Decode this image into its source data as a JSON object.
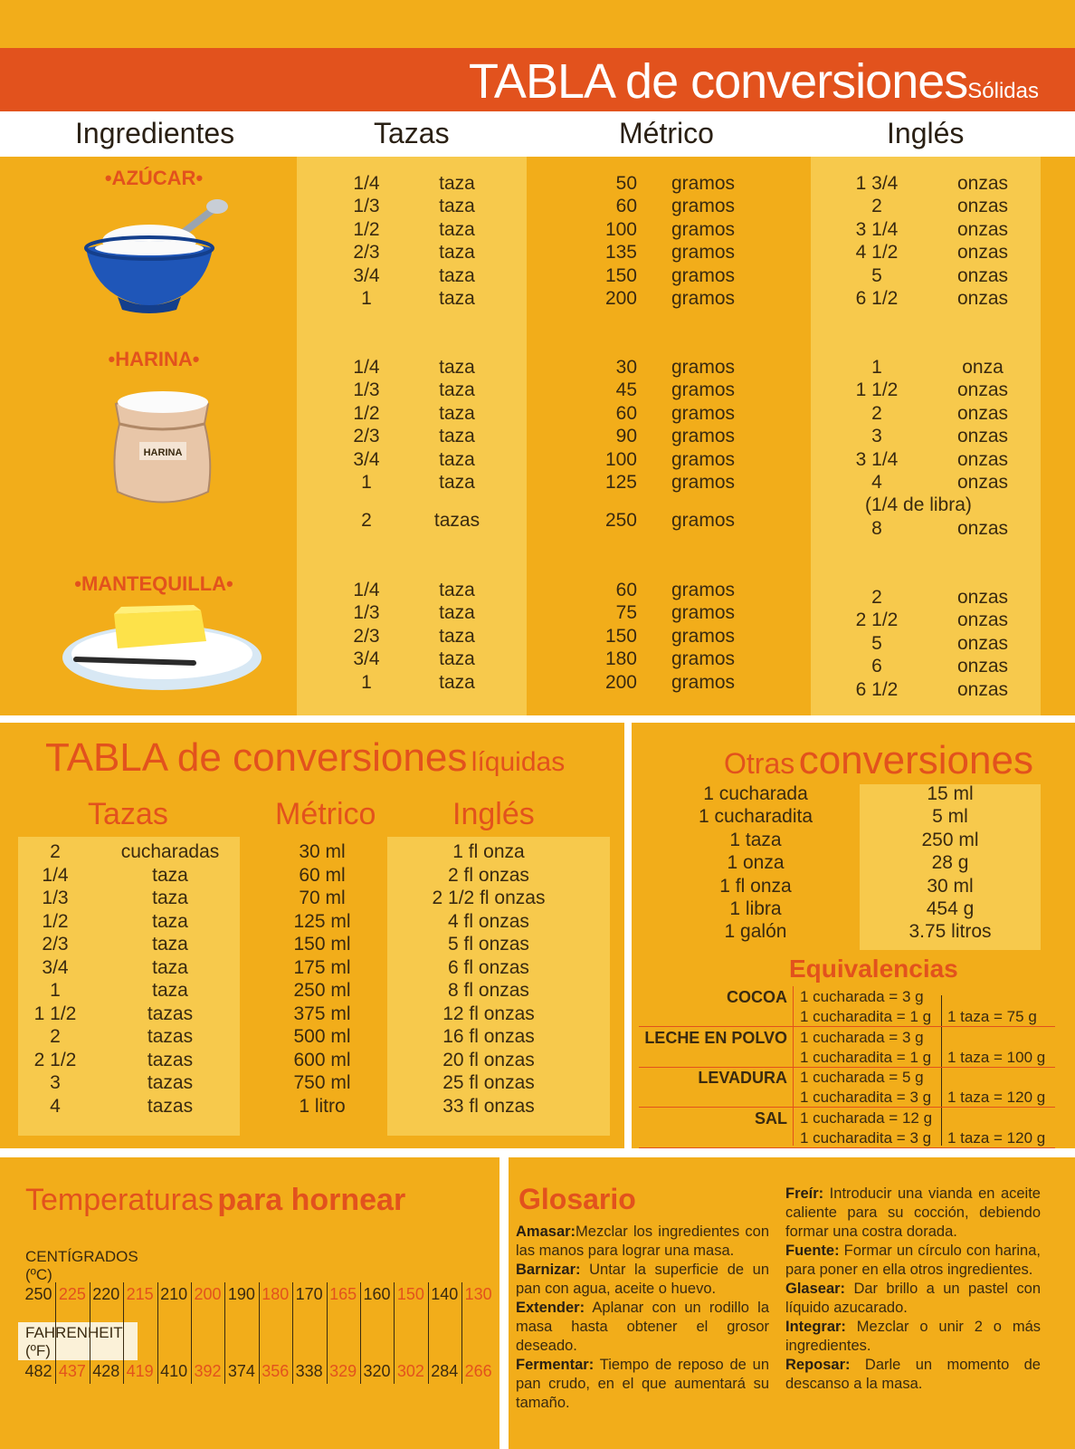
{
  "solids": {
    "title": "TABLA de conversiones",
    "subtitle": "Sólidas",
    "headers": [
      "Ingredientes",
      "Tazas",
      "Métrico",
      "Inglés"
    ],
    "ingredients": [
      {
        "name": "•AZÚCAR•",
        "icon": "sugar-bowl-icon",
        "rows": [
          [
            "1/4",
            "taza",
            "50",
            "gramos",
            "1 3/4",
            "onzas"
          ],
          [
            "1/3",
            "taza",
            "60",
            "gramos",
            "2",
            "onzas"
          ],
          [
            "1/2",
            "taza",
            "100",
            "gramos",
            "3 1/4",
            "onzas"
          ],
          [
            "2/3",
            "taza",
            "135",
            "gramos",
            "4 1/2",
            "onzas"
          ],
          [
            "3/4",
            "taza",
            "150",
            "gramos",
            "5",
            "onzas"
          ],
          [
            "1",
            "taza",
            "200",
            "gramos",
            "6 1/2",
            "onzas"
          ]
        ]
      },
      {
        "name": "•HARINA•",
        "icon": "flour-bag-icon",
        "bag_label": "HARINA",
        "rows": [
          [
            "1/4",
            "taza",
            "30",
            "gramos",
            "1",
            "onza"
          ],
          [
            "1/3",
            "taza",
            "45",
            "gramos",
            "1 1/2",
            "onzas"
          ],
          [
            "1/2",
            "taza",
            "60",
            "gramos",
            "2",
            "onzas"
          ],
          [
            "2/3",
            "taza",
            "90",
            "gramos",
            "3",
            "onzas"
          ],
          [
            "3/4",
            "taza",
            "100",
            "gramos",
            "3 1/4",
            "onzas"
          ],
          [
            "1",
            "taza",
            "125",
            "gramos",
            "4",
            "onzas"
          ]
        ],
        "note": "(1/4 de libra)",
        "extra_row": [
          "2",
          "tazas",
          "250",
          "gramos",
          "8",
          "onzas"
        ]
      },
      {
        "name": "•MANTEQUILLA•",
        "icon": "butter-plate-icon",
        "rows_left": [
          [
            "1/4",
            "taza",
            "60",
            "gramos"
          ],
          [
            "1/3",
            "taza",
            "75",
            "gramos"
          ],
          [
            "2/3",
            "taza",
            "150",
            "gramos"
          ],
          [
            "3/4",
            "taza",
            "180",
            "gramos"
          ],
          [
            "1",
            "taza",
            "200",
            "gramos"
          ]
        ],
        "rows_right": [
          [
            "2",
            "onzas"
          ],
          [
            "2 1/2",
            "onzas"
          ],
          [
            "5",
            "onzas"
          ],
          [
            "6",
            "onzas"
          ],
          [
            "6 1/2",
            "onzas"
          ]
        ]
      }
    ]
  },
  "liquids": {
    "title": "TABLA de conversiones",
    "subtitle": "líquidas",
    "headers": [
      "Tazas",
      "Métrico",
      "Inglés"
    ],
    "rows": [
      [
        "2",
        "cucharadas",
        "30 ml",
        "1 fl onza"
      ],
      [
        "1/4",
        "taza",
        "60 ml",
        "2 fl onzas"
      ],
      [
        "1/3",
        "taza",
        "70 ml",
        "2 1/2 fl onzas"
      ],
      [
        "1/2",
        "taza",
        "125 ml",
        "4 fl onzas"
      ],
      [
        "2/3",
        "taza",
        "150 ml",
        "5 fl onzas"
      ],
      [
        "3/4",
        "taza",
        "175 ml",
        "6 fl onzas"
      ],
      [
        "1",
        "taza",
        "250 ml",
        "8 fl onzas"
      ],
      [
        "1 1/2",
        "tazas",
        "375 ml",
        "12 fl onzas"
      ],
      [
        "2",
        "tazas",
        "500 ml",
        "16 fl onzas"
      ],
      [
        "2 1/2",
        "tazas",
        "600 ml",
        "20 fl onzas"
      ],
      [
        "3",
        "tazas",
        "750 ml",
        "25 fl onzas"
      ],
      [
        "4",
        "tazas",
        "1 litro",
        "33 fl onzas"
      ]
    ]
  },
  "otras": {
    "title_a": "Otras",
    "title_b": "conversiones",
    "rows": [
      [
        "1 cucharada",
        "15 ml"
      ],
      [
        "1 cucharadita",
        "5 ml"
      ],
      [
        "1 taza",
        "250 ml"
      ],
      [
        "1 onza",
        "28 g"
      ],
      [
        "1 fl onza",
        "30 ml"
      ],
      [
        "1 libra",
        "454 g"
      ],
      [
        "1 galón",
        "3.75 litros"
      ]
    ],
    "equiv_title": "Equivalencias",
    "equiv": [
      {
        "label": "COCOA",
        "a": "1 cucharada = 3 g",
        "b": "1 cucharadita = 1 g",
        "c": "1 taza = 75 g"
      },
      {
        "label": "LECHE EN POLVO",
        "a": "1 cucharada = 3 g",
        "b": "1 cucharadita = 1 g",
        "c": "1 taza = 100 g"
      },
      {
        "label": "LEVADURA",
        "a": "1 cucharada = 5 g",
        "b": "1 cucharadita = 3 g",
        "c": "1 taza = 120 g"
      },
      {
        "label": "SAL",
        "a": "1 cucharada = 12 g",
        "b": "1 cucharadita = 3 g",
        "c": "1 taza = 120 g"
      }
    ]
  },
  "temperaturas": {
    "title_a": "Temperaturas",
    "title_b": "para hornear",
    "celsius_label": "CENTÍGRADOS",
    "celsius_unit": "(ºC)",
    "fahrenheit_label": "FAHRENHEIT",
    "fahrenheit_unit": "(ºF)",
    "celsius": [
      "250",
      "225",
      "220",
      "215",
      "210",
      "200",
      "190",
      "180",
      "170",
      "165",
      "160",
      "150",
      "140",
      "130"
    ],
    "fahrenheit": [
      "482",
      "437",
      "428",
      "419",
      "410",
      "392",
      "374",
      "356",
      "338",
      "329",
      "320",
      "302",
      "284",
      "266"
    ]
  },
  "glosario": {
    "title": "Glosario",
    "left": [
      {
        "term": "Amasar:",
        "def": "Mezclar los ingredientes con las manos para lograr una masa."
      },
      {
        "term": "Barnizar:",
        "def": " Untar la superficie de un pan con agua, aceite o huevo."
      },
      {
        "term": "Extender:",
        "def": " Aplanar con un rodillo la masa hasta obtener el grosor deseado."
      },
      {
        "term": "Fermentar:",
        "def": " Tiempo de reposo de un pan crudo, en el que aumentará su tamaño."
      }
    ],
    "right": [
      {
        "term": "Freír:",
        "def": " Introducir una vianda en aceite caliente para su cocción, debiendo formar una costra dorada."
      },
      {
        "term": "Fuente:",
        "def": " Formar un círculo con harina, para poner en ella otros ingredientes."
      },
      {
        "term": "Glasear:",
        "def": " Dar brillo a un pastel con líquido azucarado."
      },
      {
        "term": "Integrar:",
        "def": " Mezclar o unir 2 o más ingredientes."
      },
      {
        "term": "Reposar:",
        "def": " Darle un momento de descanso a la masa."
      }
    ]
  },
  "colors": {
    "background": "#f2ad1a",
    "light_band": "#f7c94c",
    "accent": "#e2521d",
    "text": "#3a2a10"
  }
}
